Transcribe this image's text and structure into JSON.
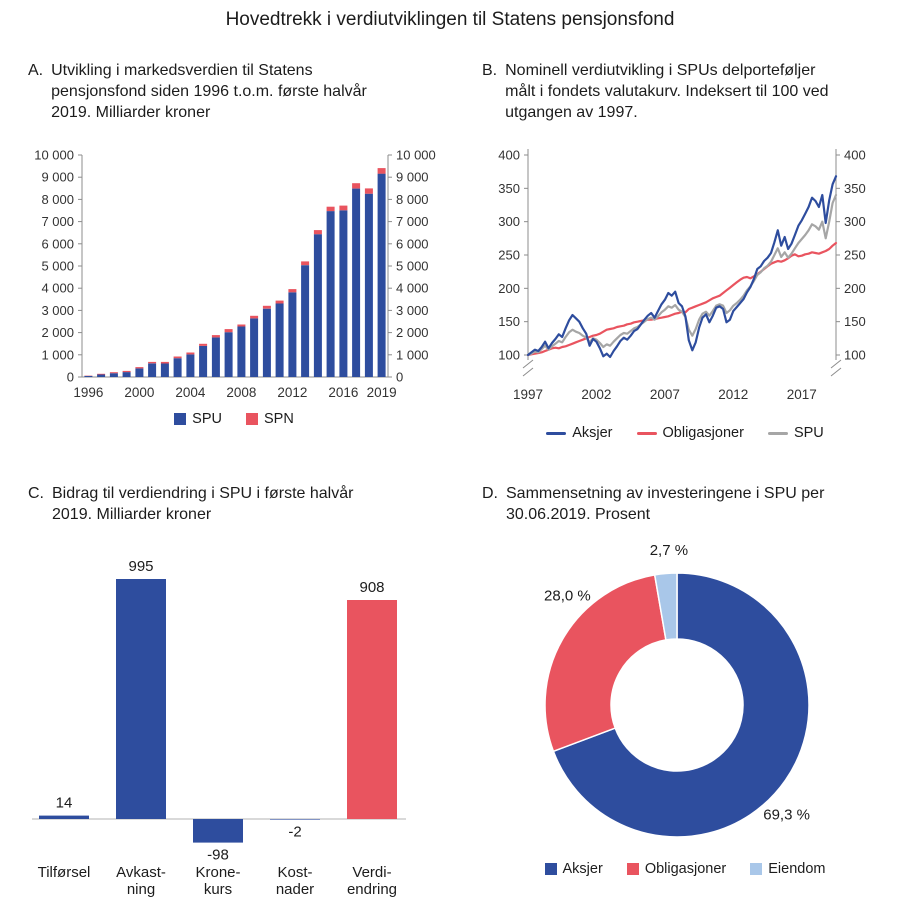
{
  "title": "Hovedtrekk i verdiutviklingen til Statens pensjonsfond",
  "colors": {
    "blue": "#2e4d9e",
    "red": "#e9545f",
    "grey": "#a6a6a6",
    "light_blue": "#a9c7e9",
    "text": "#1c1c1c",
    "axis": "#8c8c8c",
    "label": "#333333"
  },
  "chart_data": [
    {
      "panel": "A",
      "letter": "A.",
      "title": "Utvikling i markedsverdien til Statens pensjonsfond siden 1996 t.o.m. første halvår 2019. Milliarder kroner",
      "type": "bar",
      "stacked": true,
      "categories": [
        "1996",
        "1997",
        "1998",
        "1999",
        "2000",
        "2001",
        "2002",
        "2003",
        "2004",
        "2005",
        "2006",
        "2007",
        "2008",
        "2009",
        "2010",
        "2011",
        "2012",
        "2013",
        "2014",
        "2015",
        "2016",
        "2017",
        "2018",
        "2019"
      ],
      "series": [
        {
          "name": "SPU",
          "color_key": "blue",
          "values": [
            48,
            113,
            172,
            222,
            386,
            614,
            609,
            845,
            1016,
            1399,
            1784,
            2019,
            2275,
            2640,
            3077,
            3312,
            3816,
            5038,
            6431,
            7471,
            7510,
            8488,
            8256,
            9162
          ]
        },
        {
          "name": "SPN",
          "color_key": "red",
          "values": [
            12,
            32,
            44,
            52,
            58,
            64,
            70,
            78,
            86,
            95,
            105,
            139,
            88,
            117,
            128,
            129,
            145,
            168,
            186,
            198,
            212,
            240,
            239,
            250
          ]
        }
      ],
      "ylim": [
        0,
        10000
      ],
      "ytick_step": 1000,
      "xticks": [
        {
          "index": 0,
          "label": "1996"
        },
        {
          "index": 4,
          "label": "2000"
        },
        {
          "index": 8,
          "label": "2004"
        },
        {
          "index": 12,
          "label": "2008"
        },
        {
          "index": 16,
          "label": "2012"
        },
        {
          "index": 20,
          "label": "2016"
        },
        {
          "index": 23,
          "label": "2019"
        }
      ],
      "grid": false,
      "legend_position": "bottom"
    },
    {
      "panel": "B",
      "letter": "B.",
      "title": "Nominell verdiutvikling i SPUs delporteføljer målt i fondets valutakurv. Indeksert til 100 ved utgangen av 1997.",
      "type": "line",
      "x_start": 1997,
      "x_step": 0.25,
      "xlim": [
        1997,
        2019.5
      ],
      "ylim": [
        100,
        400
      ],
      "yticks": [
        100,
        150,
        200,
        250,
        300,
        350,
        400
      ],
      "axis_break_below": 100,
      "xtick_years": [
        1997,
        2002,
        2007,
        2012,
        2017
      ],
      "series": [
        {
          "name": "Aksjer",
          "color_key": "blue",
          "values": [
            100,
            104,
            108,
            106,
            112,
            120,
            110,
            118,
            124,
            131,
            127,
            140,
            152,
            160,
            155,
            150,
            140,
            132,
            114,
            124,
            120,
            110,
            98,
            102,
            97,
            106,
            113,
            121,
            126,
            123,
            129,
            136,
            139,
            146,
            153,
            159,
            163,
            156,
            166,
            176,
            183,
            193,
            189,
            195,
            178,
            173,
            158,
            122,
            107,
            119,
            141,
            156,
            161,
            149,
            159,
            171,
            173,
            169,
            149,
            153,
            166,
            172,
            178,
            184,
            194,
            202,
            214,
            229,
            233,
            241,
            246,
            253,
            269,
            287,
            264,
            277,
            259,
            267,
            280,
            294,
            302,
            312,
            322,
            336,
            331,
            322,
            340,
            298,
            332,
            356,
            368
          ]
        },
        {
          "name": "Obligasjoner",
          "color_key": "red",
          "values": [
            100,
            101,
            102,
            103,
            104,
            106,
            108,
            110,
            111,
            110,
            112,
            113,
            115,
            117,
            119,
            121,
            123,
            125,
            127,
            129,
            130,
            132,
            135,
            138,
            139,
            140,
            142,
            143,
            144,
            146,
            147,
            149,
            150,
            151,
            152,
            153,
            153,
            154,
            155,
            156,
            157,
            158,
            160,
            162,
            163,
            165,
            164,
            169,
            171,
            173,
            175,
            177,
            179,
            182,
            185,
            187,
            189,
            193,
            197,
            201,
            205,
            209,
            213,
            216,
            217,
            215,
            218,
            221,
            225,
            229,
            233,
            237,
            239,
            241,
            240,
            242,
            245,
            249,
            251,
            248,
            249,
            251,
            252,
            254,
            253,
            252,
            254,
            256,
            259,
            264,
            268
          ]
        },
        {
          "name": "SPU",
          "color_key": "grey",
          "values": [
            100,
            102,
            105,
            104,
            109,
            114,
            108,
            113,
            117,
            121,
            119,
            127,
            134,
            138,
            135,
            133,
            129,
            126,
            119,
            125,
            123,
            118,
            112,
            116,
            114,
            120,
            125,
            130,
            133,
            132,
            136,
            140,
            142,
            146,
            150,
            154,
            156,
            153,
            158,
            164,
            168,
            173,
            171,
            175,
            168,
            165,
            157,
            138,
            129,
            139,
            153,
            162,
            165,
            159,
            166,
            174,
            176,
            174,
            163,
            167,
            174,
            178,
            183,
            189,
            197,
            203,
            211,
            220,
            224,
            230,
            234,
            240,
            250,
            260,
            247,
            254,
            246,
            252,
            260,
            268,
            274,
            280,
            287,
            296,
            293,
            288,
            300,
            275,
            300,
            328,
            340
          ]
        }
      ],
      "grid": false,
      "legend_position": "bottom"
    },
    {
      "panel": "C",
      "letter": "C.",
      "title": "Bidrag til verdiendring i SPU i første halvår 2019. Milliarder kroner",
      "type": "bar",
      "categories": [
        [
          "Tilførsel"
        ],
        [
          "Avkast-",
          "ning"
        ],
        [
          "Krone-",
          "kurs"
        ],
        [
          "Kost-",
          "nader"
        ],
        [
          "Verdi-",
          "endring"
        ]
      ],
      "values": [
        14,
        995,
        -98,
        -2,
        908
      ],
      "value_labels": [
        "14",
        "995",
        "-98",
        "-2",
        "908"
      ],
      "bar_color_keys": [
        "blue",
        "blue",
        "blue",
        "blue",
        "red"
      ],
      "ylim": [
        -150,
        1050
      ],
      "grid": false
    },
    {
      "panel": "D",
      "letter": "D.",
      "title": "Sammensetning av investeringene i SPU per 30.06.2019. Prosent",
      "type": "pie",
      "donut": true,
      "start_angle_deg": 0,
      "direction": "clockwise",
      "slices": [
        {
          "label": "Aksjer",
          "value": 69.3,
          "display": "69,3 %",
          "color_key": "blue",
          "label_angle_deg": 135
        },
        {
          "label": "Obligasjoner",
          "value": 28.0,
          "display": "28,0 %",
          "color_key": "red",
          "label_angle_deg": 315
        },
        {
          "label": "Eiendom",
          "value": 2.7,
          "display": "2,7 %",
          "color_key": "light_blue",
          "label_angle_deg": 357
        }
      ],
      "legend_position": "bottom"
    }
  ]
}
